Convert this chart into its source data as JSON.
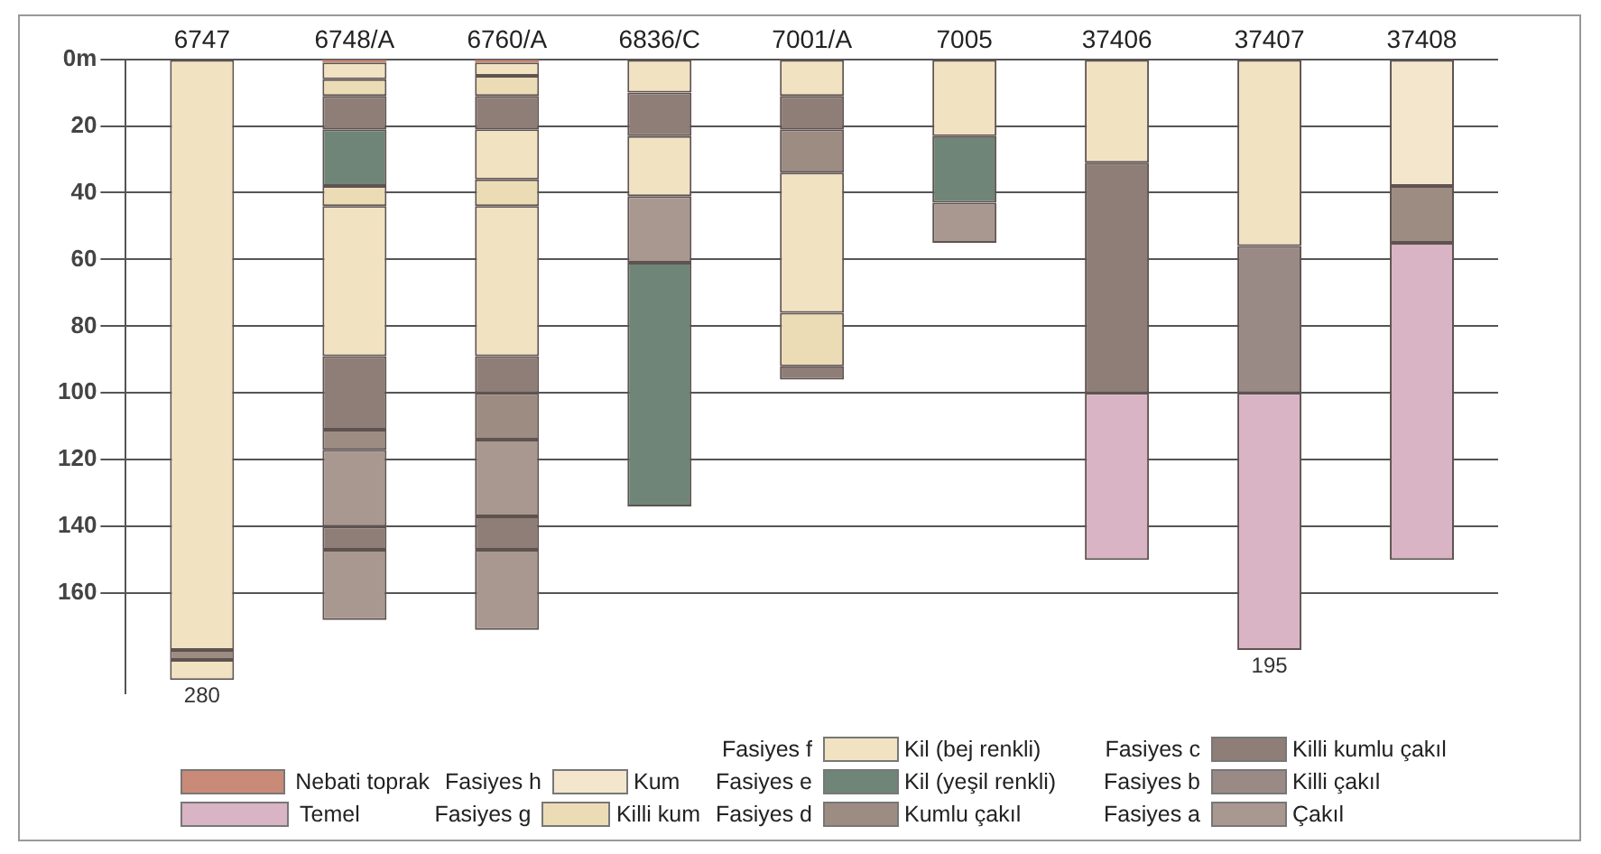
{
  "chart_data": {
    "type": "bar",
    "categories": [
      "6747",
      "6748/A",
      "6760/A",
      "6836/C",
      "7001/A",
      "7005",
      "37406",
      "37407",
      "37408"
    ],
    "ylim": [
      190,
      0
    ],
    "yticks": [
      {
        "value": 0,
        "label": "0m"
      },
      20,
      40,
      60,
      80,
      100,
      120,
      140,
      160
    ],
    "grid": "y",
    "legend": "bottom",
    "series": [
      {
        "name": "Nebati toprak",
        "color": "#c98a78",
        "base": [
          null,
          0,
          0,
          null,
          null,
          null,
          null,
          null,
          null
        ],
        "values": [
          null,
          1,
          1,
          null,
          null,
          null,
          null,
          null,
          null
        ]
      },
      {
        "name": "Temel",
        "color": "#d8b4c4",
        "base": [
          null,
          null,
          null,
          null,
          null,
          null,
          100,
          100,
          55
        ],
        "values": [
          null,
          null,
          null,
          null,
          null,
          null,
          50,
          77,
          95
        ]
      },
      {
        "name": "Kum",
        "color": "#f3e6cc",
        "base": [
          null,
          null,
          null,
          null,
          null,
          null,
          null,
          null,
          0
        ],
        "values": [
          null,
          null,
          null,
          null,
          null,
          null,
          null,
          null,
          38
        ]
      },
      {
        "name": "Killi kum",
        "color": "#ecdcb6",
        "base": [
          null,
          6,
          5,
          null,
          76,
          null,
          null,
          null,
          null
        ],
        "values": [
          null,
          5,
          6,
          null,
          16,
          null,
          null,
          null,
          null
        ]
      },
      {
        "name": "Kil (bej renkli)",
        "color": "#f1e2c2",
        "base": [
          0,
          1,
          1,
          0,
          0,
          0,
          0,
          0,
          null
        ],
        "values": [
          177,
          5,
          4,
          10,
          11,
          23,
          31,
          56,
          null
        ]
      },
      {
        "name": "Kil (yeşil renkli)",
        "color": "#6f8577",
        "base": [
          null,
          21,
          null,
          61,
          null,
          23,
          null,
          null,
          null
        ],
        "values": [
          null,
          17,
          null,
          73,
          null,
          20,
          null,
          null,
          null
        ]
      },
      {
        "name": "Kumlu çakıl",
        "color": "#9c8c82",
        "base": [
          177,
          111,
          100,
          null,
          21,
          null,
          null,
          null,
          38
        ],
        "values": [
          3,
          6,
          14,
          null,
          13,
          null,
          null,
          null,
          17
        ]
      },
      {
        "name": "Killi kumlu çakıl",
        "color": "#8e7e77",
        "base": [
          null,
          11,
          11,
          10,
          11,
          null,
          31,
          null,
          null
        ],
        "values": [
          null,
          10,
          10,
          13,
          10,
          null,
          69,
          null,
          null
        ]
      },
      {
        "name": "Killi çakıl",
        "color": "#9a8a86",
        "base": [
          null,
          null,
          null,
          null,
          null,
          null,
          null,
          56,
          null
        ],
        "values": [
          null,
          null,
          null,
          null,
          null,
          null,
          null,
          44,
          null
        ]
      },
      {
        "name": "Çakıl",
        "color": "#a89890",
        "base": [
          null,
          117,
          114,
          41,
          null,
          43,
          null,
          null,
          null
        ],
        "values": [
          null,
          23,
          23,
          20,
          null,
          12,
          null,
          null,
          null
        ]
      },
      {
        "color": "#ecdcb6",
        "base": [
          null,
          38,
          36,
          null,
          null,
          null,
          null,
          null,
          null
        ],
        "values": [
          null,
          6,
          8,
          null,
          null,
          null,
          null,
          null,
          null
        ]
      },
      {
        "color": "#f1e2c2",
        "base": [
          180,
          44,
          21,
          23,
          34,
          null,
          null,
          null,
          null
        ],
        "values": [
          6,
          45,
          15,
          18,
          42,
          null,
          null,
          null,
          null
        ]
      },
      {
        "color": "#f1e2c2",
        "base": [
          null,
          null,
          44,
          null,
          null,
          null,
          null,
          null,
          null
        ],
        "values": [
          null,
          null,
          45,
          null,
          null,
          null,
          null,
          null,
          null
        ]
      },
      {
        "color": "#8e7e77",
        "base": [
          null,
          89,
          89,
          null,
          92,
          null,
          null,
          null,
          null
        ],
        "values": [
          null,
          22,
          11,
          null,
          4,
          null,
          null,
          null,
          null
        ]
      },
      {
        "color": "#8e7e77",
        "base": [
          null,
          140,
          137,
          null,
          null,
          null,
          null,
          null,
          null
        ],
        "values": [
          null,
          7,
          10,
          null,
          null,
          null,
          null,
          null,
          null
        ]
      },
      {
        "color": "#a89890",
        "base": [
          null,
          147,
          147,
          null,
          null,
          null,
          null,
          null,
          null
        ],
        "values": [
          null,
          21,
          24,
          null,
          null,
          null,
          null,
          null,
          null
        ]
      }
    ],
    "annotations": [
      {
        "text": "280",
        "x": "6747",
        "y": 186
      },
      {
        "text": "195",
        "x": "37407",
        "y": 177
      },
      "Fasiyes h",
      "Fasiyes g",
      "Fasiyes f",
      "Fasiyes e",
      "Fasiyes d",
      "Fasiyes c",
      "Fasiyes b",
      "Fasiyes a"
    ]
  }
}
